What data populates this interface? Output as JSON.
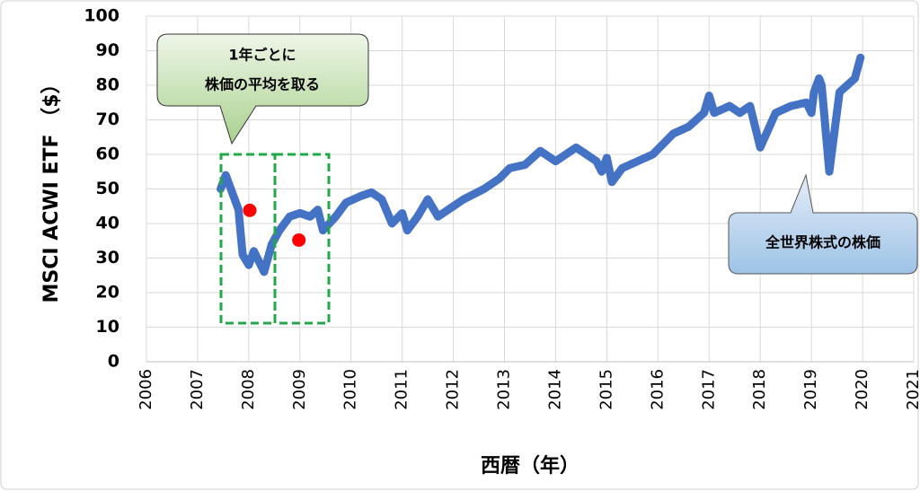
{
  "chart_data": {
    "type": "line",
    "x_label": "西暦（年）",
    "y_label": "MSCI ACWI ETF （$）",
    "x": [
      2007.45,
      2007.55,
      2007.7,
      2007.8,
      2007.88,
      2008.0,
      2008.1,
      2008.2,
      2008.3,
      2008.45,
      2008.6,
      2008.8,
      2009.0,
      2009.2,
      2009.35,
      2009.45,
      2009.7,
      2009.9,
      2010.2,
      2010.4,
      2010.6,
      2010.8,
      2011.0,
      2011.1,
      2011.3,
      2011.5,
      2011.7,
      2012.0,
      2012.2,
      2012.6,
      2012.9,
      2013.1,
      2013.4,
      2013.7,
      2014.0,
      2014.4,
      2014.6,
      2014.8,
      2014.9,
      2015.0,
      2015.1,
      2015.3,
      2015.6,
      2015.9,
      2016.3,
      2016.6,
      2016.9,
      2017.0,
      2017.1,
      2017.4,
      2017.6,
      2017.8,
      2018.0,
      2018.3,
      2018.6,
      2018.9,
      2019.0,
      2019.05,
      2019.15,
      2019.2,
      2019.35,
      2019.55,
      2019.7,
      2019.85,
      2019.96
    ],
    "values": [
      50,
      54,
      48,
      44,
      31,
      28,
      32,
      29,
      26,
      34,
      38,
      42,
      43,
      42,
      44,
      38,
      42,
      46,
      48,
      49,
      47,
      40,
      43,
      38,
      42,
      47,
      42,
      45,
      47,
      50,
      53,
      56,
      57,
      61,
      58,
      62,
      60,
      58,
      55,
      59,
      52,
      56,
      58,
      60,
      66,
      68,
      72,
      77,
      72,
      74,
      72,
      74,
      62,
      72,
      74,
      75,
      72,
      78,
      82,
      80,
      55,
      78,
      80,
      82,
      88
    ],
    "color": "#4472c4",
    "averages": {
      "x": [
        2008.02,
        2008.98
      ],
      "values": [
        43.8,
        35.2
      ],
      "color": "#ff0000"
    },
    "annotations": [
      [
        "1年ごとに",
        "株価の平均を取る"
      ],
      [
        "全世界株式の株価"
      ]
    ],
    "xlim": [
      2006,
      2021
    ],
    "xticks": [
      2006,
      2007,
      2008,
      2009,
      2010,
      2011,
      2012,
      2013,
      2014,
      2015,
      2016,
      2017,
      2018,
      2019,
      2020,
      2021
    ],
    "ylim": [
      0,
      100
    ],
    "yticks": [
      0,
      10,
      20,
      30,
      40,
      50,
      60,
      70,
      80,
      90,
      100
    ],
    "grid": true
  }
}
